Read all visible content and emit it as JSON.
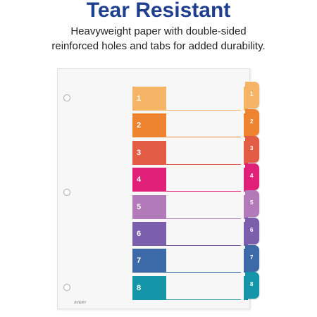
{
  "heading": {
    "title": "Tear Resistant",
    "subtitle_line1": "Heavyweight paper with double-sided",
    "subtitle_line2": "reinforced holes and tabs for added durability."
  },
  "divider": {
    "brand_mark": "AVERY",
    "tabs": [
      {
        "label": "1",
        "color": "#f6b566"
      },
      {
        "label": "2",
        "color": "#ee8430"
      },
      {
        "label": "3",
        "color": "#e35c45"
      },
      {
        "label": "4",
        "color": "#e01f79"
      },
      {
        "label": "5",
        "color": "#b37ab9"
      },
      {
        "label": "6",
        "color": "#7b5fad"
      },
      {
        "label": "7",
        "color": "#3c6aa8"
      },
      {
        "label": "8",
        "color": "#1596a8"
      }
    ]
  }
}
